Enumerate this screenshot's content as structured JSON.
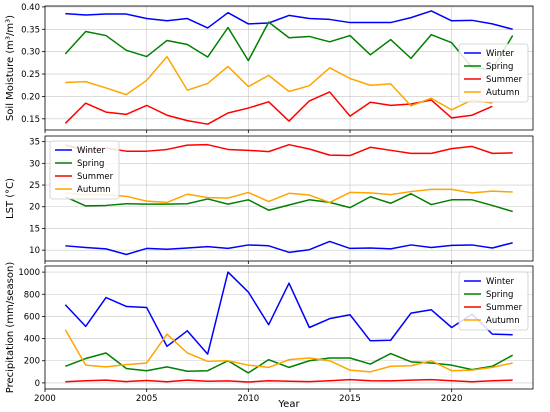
{
  "chart_data": {
    "type": "line",
    "xlabel": "Year",
    "x": [
      2001,
      2002,
      2003,
      2004,
      2005,
      2006,
      2007,
      2008,
      2009,
      2010,
      2011,
      2012,
      2013,
      2014,
      2015,
      2016,
      2017,
      2018,
      2019,
      2020,
      2021,
      2022,
      2023
    ],
    "xticks": [
      2000,
      2005,
      2010,
      2015,
      2020
    ],
    "xlim": [
      2000,
      2024
    ],
    "panels": [
      {
        "ylabel": "Soil Moisture (m³/m³)",
        "ylim": [
          0.125,
          0.402
        ],
        "yticks": [
          0.15,
          0.2,
          0.25,
          0.3,
          0.35,
          0.4
        ],
        "tick_format": "2f",
        "legend": "right",
        "series": [
          {
            "name": "Winter",
            "color": "#0000ff",
            "values": [
              0.385,
              0.382,
              0.384,
              0.384,
              0.374,
              0.369,
              0.374,
              0.353,
              0.387,
              0.362,
              0.364,
              0.381,
              0.374,
              0.372,
              0.365,
              0.365,
              0.365,
              0.376,
              0.391,
              0.369,
              0.37,
              0.362,
              0.35
            ]
          },
          {
            "name": "Spring",
            "color": "#008000",
            "values": [
              0.295,
              0.345,
              0.336,
              0.303,
              0.289,
              0.325,
              0.316,
              0.288,
              0.354,
              0.28,
              0.366,
              0.331,
              0.334,
              0.322,
              0.336,
              0.293,
              0.327,
              0.285,
              0.338,
              0.32,
              0.265,
              0.26,
              0.336
            ]
          },
          {
            "name": "Summer",
            "color": "#ff0000",
            "values": [
              0.14,
              0.185,
              0.165,
              0.16,
              0.18,
              0.158,
              0.146,
              0.138,
              0.163,
              0.174,
              0.188,
              0.145,
              0.19,
              0.21,
              0.156,
              0.187,
              0.18,
              0.183,
              0.192,
              0.152,
              0.158,
              0.178,
              null
            ]
          },
          {
            "name": "Autumn",
            "color": "#ffa500",
            "values": [
              0.231,
              0.233,
              0.219,
              0.204,
              0.236,
              0.289,
              0.214,
              0.229,
              0.267,
              0.222,
              0.247,
              0.211,
              0.224,
              0.264,
              0.24,
              0.225,
              0.228,
              0.179,
              0.196,
              0.17,
              0.192,
              0.185,
              null
            ]
          }
        ]
      },
      {
        "ylabel": "LST (°C)",
        "ylim": [
          7.5,
          36.3
        ],
        "yticks": [
          10,
          15,
          20,
          25,
          30,
          35
        ],
        "tick_format": "0f",
        "legend": "left",
        "series": [
          {
            "name": "Winter",
            "color": "#0000ff",
            "values": [
              11.0,
              10.6,
              10.3,
              9.0,
              10.4,
              10.2,
              10.5,
              10.8,
              10.4,
              11.2,
              11.0,
              9.5,
              10.1,
              12.0,
              10.4,
              10.5,
              10.3,
              11.2,
              10.6,
              11.1,
              11.2,
              10.5,
              11.7
            ]
          },
          {
            "name": "Spring",
            "color": "#008000",
            "values": [
              22.3,
              20.2,
              20.3,
              20.7,
              20.6,
              20.6,
              20.7,
              21.8,
              20.6,
              21.6,
              19.2,
              20.4,
              21.6,
              21.0,
              19.8,
              22.3,
              20.8,
              23.0,
              20.5,
              21.6,
              21.6,
              20.3,
              18.9
            ]
          },
          {
            "name": "Summer",
            "color": "#ff0000",
            "values": [
              34.2,
              33.0,
              33.5,
              32.8,
              32.8,
              33.2,
              34.2,
              34.3,
              33.2,
              33.0,
              32.7,
              34.3,
              33.3,
              31.9,
              31.8,
              33.7,
              33.0,
              32.3,
              32.3,
              33.4,
              33.9,
              32.3,
              32.4
            ]
          },
          {
            "name": "Autumn",
            "color": "#ffa500",
            "values": [
              23.2,
              22.8,
              22.8,
              22.4,
              21.3,
              21.0,
              22.9,
              22.1,
              22.0,
              23.3,
              21.2,
              23.1,
              22.7,
              21.0,
              23.3,
              23.2,
              22.8,
              23.5,
              24.0,
              24.0,
              23.2,
              23.6,
              23.4
            ]
          }
        ]
      },
      {
        "ylabel": "Precipitation (mm/season)",
        "ylim": [
          -55,
          1055
        ],
        "yticks": [
          0,
          200,
          400,
          600,
          800,
          1000
        ],
        "tick_format": "0f",
        "legend": "right",
        "series": [
          {
            "name": "Winter",
            "color": "#0000ff",
            "values": [
              705,
              510,
              770,
              690,
              680,
              330,
              470,
              260,
              1000,
              820,
              525,
              900,
              500,
              580,
              615,
              380,
              385,
              630,
              660,
              500,
              620,
              440,
              435
            ]
          },
          {
            "name": "Spring",
            "color": "#008000",
            "values": [
              150,
              220,
              270,
              130,
              110,
              145,
              105,
              110,
              200,
              90,
              210,
              140,
              200,
              225,
              225,
              170,
              265,
              190,
              180,
              160,
              120,
              150,
              250
            ]
          },
          {
            "name": "Summer",
            "color": "#ff0000",
            "values": [
              10,
              20,
              25,
              12,
              22,
              10,
              25,
              15,
              18,
              8,
              20,
              15,
              12,
              20,
              30,
              20,
              18,
              25,
              30,
              20,
              10,
              20,
              25
            ]
          },
          {
            "name": "Autumn",
            "color": "#ffa500",
            "values": [
              480,
              160,
              145,
              165,
              180,
              440,
              270,
              195,
              200,
              160,
              140,
              210,
              225,
              200,
              115,
              100,
              150,
              155,
              200,
              110,
              115,
              140,
              180
            ]
          }
        ]
      }
    ]
  }
}
